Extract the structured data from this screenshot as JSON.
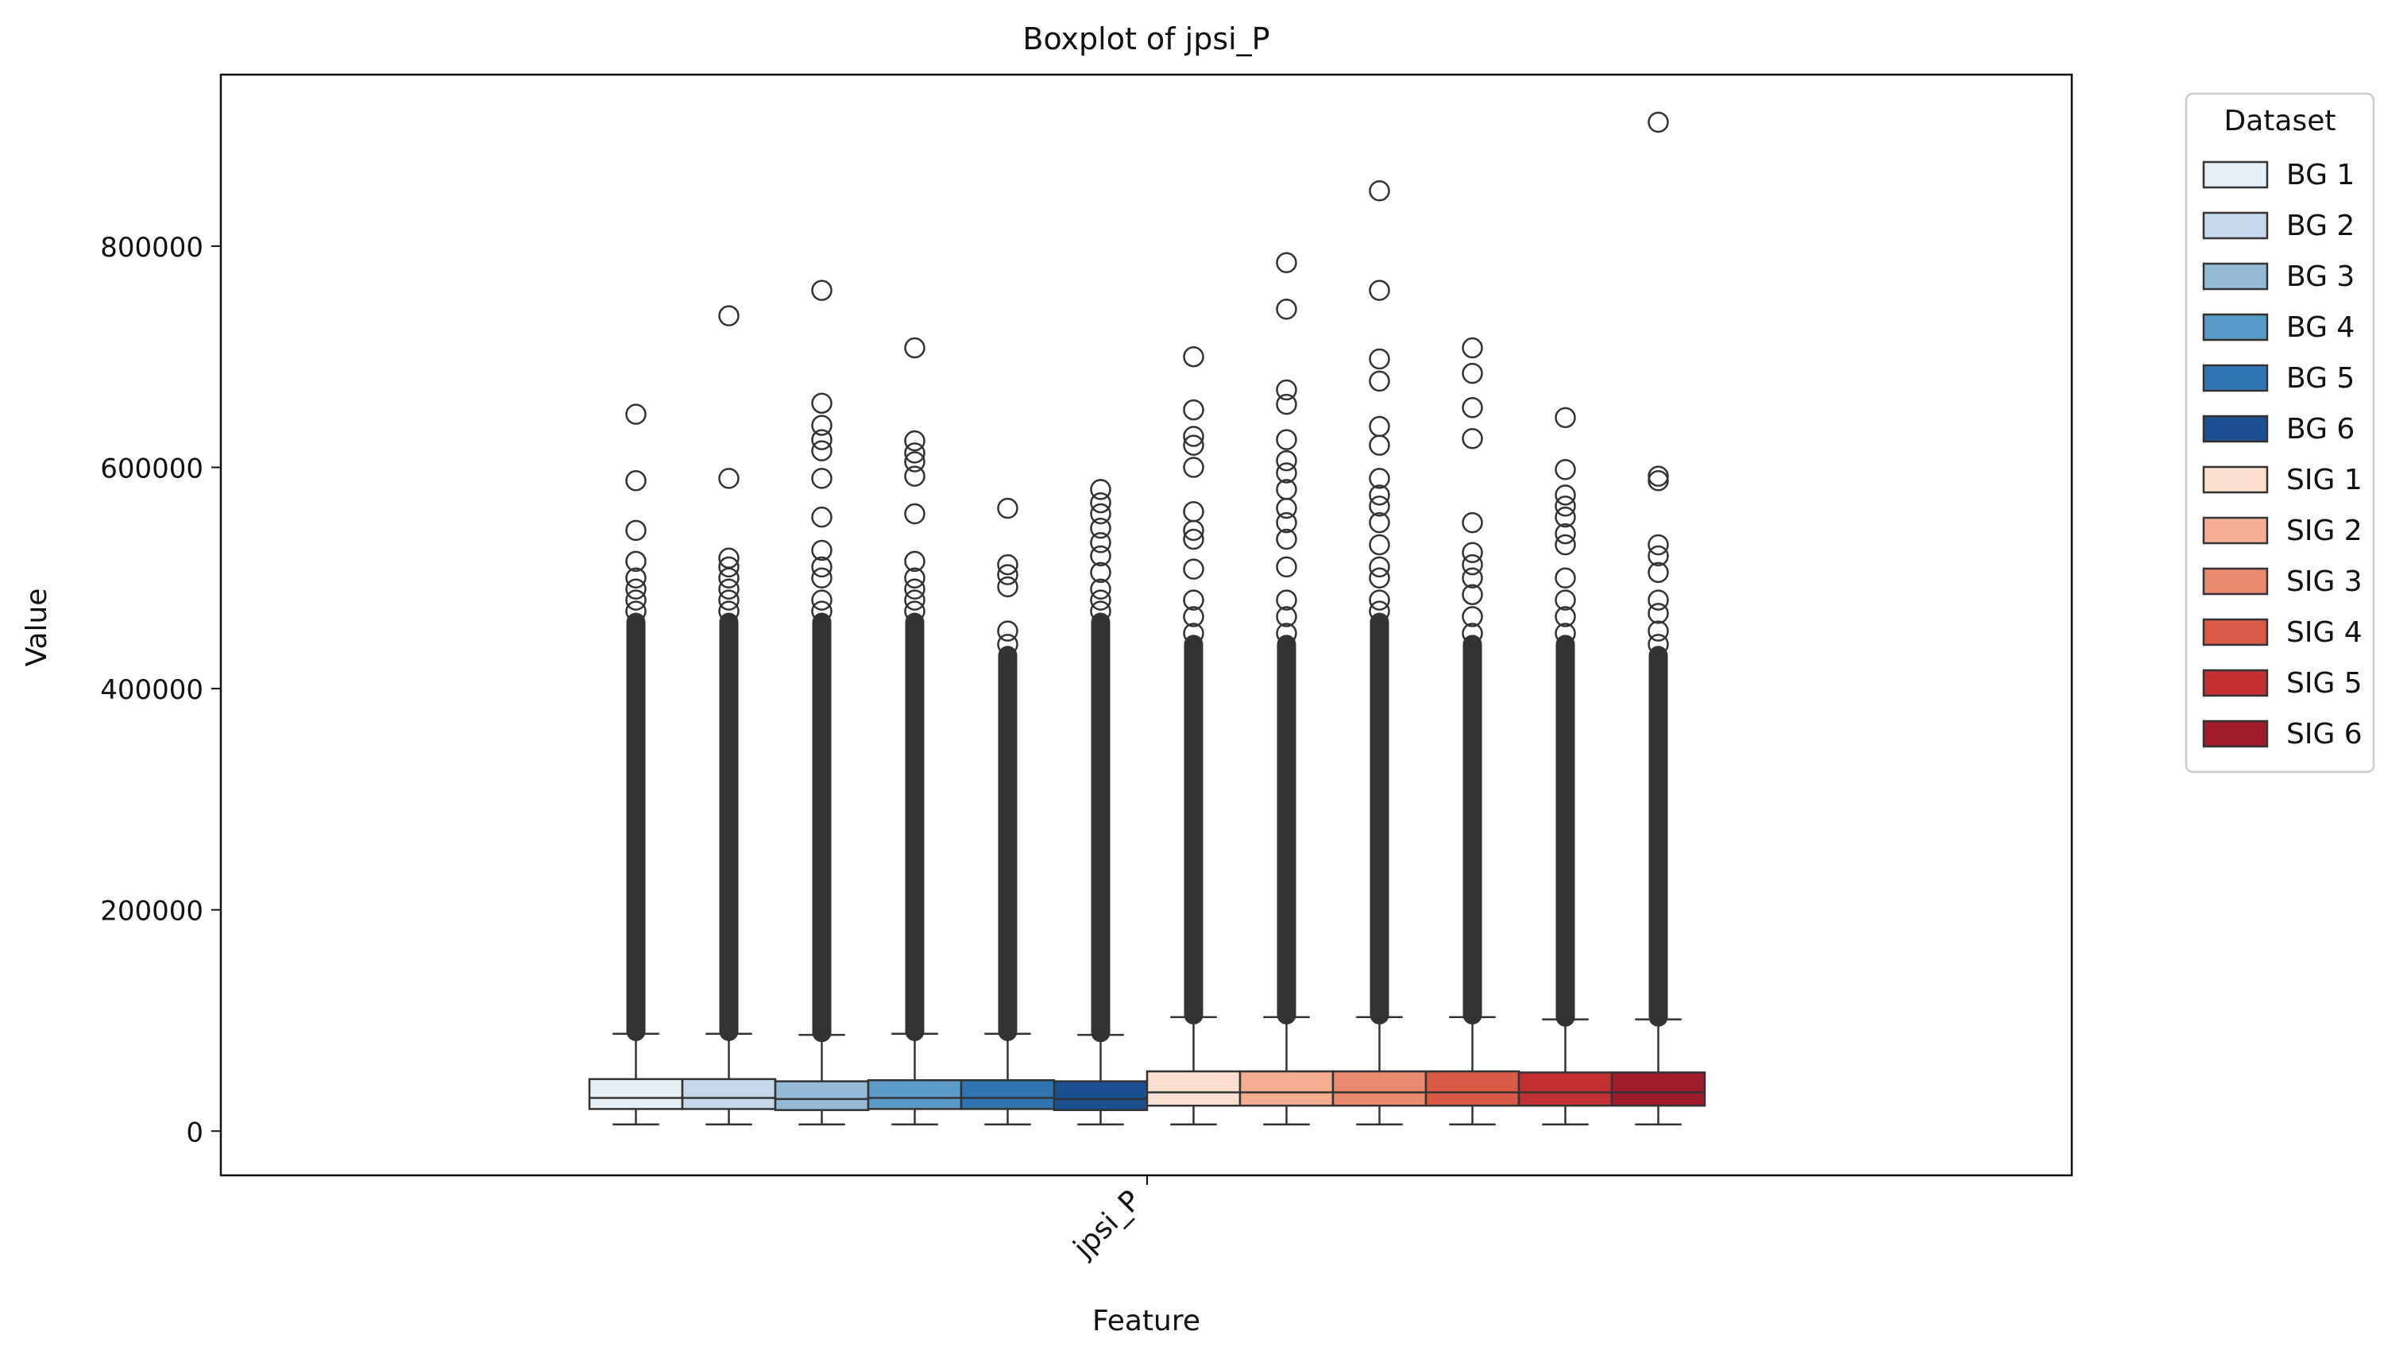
{
  "chart_data": {
    "type": "boxplot",
    "title": "Boxplot of jpsi_P",
    "xlabel": "Feature",
    "ylabel": "Value",
    "categories": [
      "jpsi_P"
    ],
    "ylim": [
      -40000,
      955000
    ],
    "yticks": [
      0,
      200000,
      400000,
      600000,
      800000
    ],
    "grid": false,
    "legend": {
      "title": "Dataset",
      "placement": "outside-right-top"
    },
    "series": [
      {
        "name": "BG 1",
        "color": "#e6eff6",
        "whisker_low": 6000,
        "q1": 20000,
        "median": 30000,
        "q3": 47000,
        "whisker_high": 88000,
        "outlier_dense_max": 460000,
        "outliers": [
          470000,
          480000,
          490000,
          500000,
          515000,
          543000,
          588000,
          648000
        ]
      },
      {
        "name": "BG 2",
        "color": "#c6d9ea",
        "whisker_low": 6000,
        "q1": 20000,
        "median": 30000,
        "q3": 47000,
        "whisker_high": 88000,
        "outlier_dense_max": 460000,
        "outliers": [
          470000,
          480000,
          490000,
          500000,
          510000,
          518000,
          590000,
          737000
        ]
      },
      {
        "name": "BG 3",
        "color": "#93bbd7",
        "whisker_low": 6000,
        "q1": 19000,
        "median": 29000,
        "q3": 45000,
        "whisker_high": 87000,
        "outlier_dense_max": 460000,
        "outliers": [
          470000,
          480000,
          500000,
          510000,
          525000,
          555000,
          590000,
          615000,
          625000,
          638000,
          658000,
          760000
        ]
      },
      {
        "name": "BG 4",
        "color": "#5b9bc8",
        "whisker_low": 6000,
        "q1": 20000,
        "median": 30000,
        "q3": 46000,
        "whisker_high": 88000,
        "outlier_dense_max": 460000,
        "outliers": [
          470000,
          480000,
          490000,
          500000,
          515000,
          558000,
          592000,
          605000,
          613000,
          624000,
          708000
        ]
      },
      {
        "name": "BG 5",
        "color": "#2f75b2",
        "whisker_low": 6000,
        "q1": 20000,
        "median": 30000,
        "q3": 46000,
        "whisker_high": 88000,
        "outlier_dense_max": 430000,
        "outliers": [
          440000,
          452000,
          492000,
          503000,
          512000,
          563000
        ]
      },
      {
        "name": "BG 6",
        "color": "#1c4f8f",
        "whisker_low": 6000,
        "q1": 19000,
        "median": 29000,
        "q3": 45000,
        "whisker_high": 87000,
        "outlier_dense_max": 460000,
        "outliers": [
          470000,
          480000,
          490000,
          505000,
          520000,
          532000,
          545000,
          558000,
          568000,
          580000
        ]
      },
      {
        "name": "SIG 1",
        "color": "#fbdfcf",
        "whisker_low": 6000,
        "q1": 23000,
        "median": 35000,
        "q3": 54000,
        "whisker_high": 103000,
        "outlier_dense_max": 440000,
        "outliers": [
          450000,
          465000,
          480000,
          508000,
          535000,
          543000,
          560000,
          600000,
          620000,
          628000,
          652000,
          700000
        ]
      },
      {
        "name": "SIG 2",
        "color": "#f4ae92",
        "whisker_low": 6000,
        "q1": 23000,
        "median": 35000,
        "q3": 54000,
        "whisker_high": 103000,
        "outlier_dense_max": 440000,
        "outliers": [
          450000,
          465000,
          480000,
          510000,
          535000,
          550000,
          563000,
          580000,
          595000,
          606000,
          625000,
          657000,
          670000,
          743000,
          785000
        ]
      },
      {
        "name": "SIG 3",
        "color": "#e98a6f",
        "whisker_low": 6000,
        "q1": 23000,
        "median": 35000,
        "q3": 54000,
        "whisker_high": 103000,
        "outlier_dense_max": 460000,
        "outliers": [
          470000,
          480000,
          500000,
          510000,
          530000,
          550000,
          565000,
          575000,
          590000,
          620000,
          637000,
          678000,
          698000,
          760000,
          850000
        ]
      },
      {
        "name": "SIG 4",
        "color": "#db5a45",
        "whisker_low": 6000,
        "q1": 23000,
        "median": 35000,
        "q3": 54000,
        "whisker_high": 103000,
        "outlier_dense_max": 440000,
        "outliers": [
          450000,
          465000,
          485000,
          500000,
          512000,
          523000,
          550000,
          626000,
          654000,
          685000,
          708000
        ]
      },
      {
        "name": "SIG 5",
        "color": "#c23033",
        "whisker_low": 6000,
        "q1": 23000,
        "median": 35000,
        "q3": 53000,
        "whisker_high": 101000,
        "outlier_dense_max": 440000,
        "outliers": [
          450000,
          465000,
          480000,
          500000,
          530000,
          540000,
          555000,
          565000,
          575000,
          598000,
          645000
        ]
      },
      {
        "name": "SIG 6",
        "color": "#a01c2a",
        "whisker_low": 6000,
        "q1": 23000,
        "median": 35000,
        "q3": 53000,
        "whisker_high": 101000,
        "outlier_dense_max": 430000,
        "outliers": [
          440000,
          452000,
          468000,
          480000,
          505000,
          520000,
          530000,
          588000,
          592000,
          912000
        ]
      }
    ]
  }
}
